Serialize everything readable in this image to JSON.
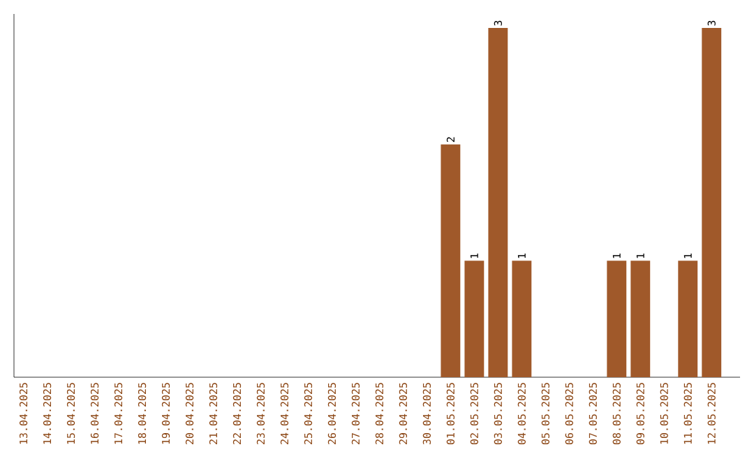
{
  "chart_data": {
    "type": "bar",
    "categories": [
      "13.04.2025",
      "14.04.2025",
      "15.04.2025",
      "16.04.2025",
      "17.04.2025",
      "18.04.2025",
      "19.04.2025",
      "20.04.2025",
      "21.04.2025",
      "22.04.2025",
      "23.04.2025",
      "24.04.2025",
      "25.04.2025",
      "26.04.2025",
      "27.04.2025",
      "28.04.2025",
      "29.04.2025",
      "30.04.2025",
      "01.05.2025",
      "02.05.2025",
      "03.05.2025",
      "04.05.2025",
      "05.05.2025",
      "06.05.2025",
      "07.05.2025",
      "08.05.2025",
      "09.05.2025",
      "10.05.2025",
      "11.05.2025",
      "12.05.2025"
    ],
    "values": [
      null,
      null,
      null,
      null,
      null,
      null,
      null,
      null,
      null,
      null,
      null,
      null,
      null,
      null,
      null,
      null,
      null,
      null,
      2,
      1,
      3,
      1,
      null,
      null,
      null,
      1,
      1,
      null,
      1,
      3
    ],
    "data_labels": true,
    "color": "#a0592a",
    "tick_labels": "x",
    "grid": false
  }
}
